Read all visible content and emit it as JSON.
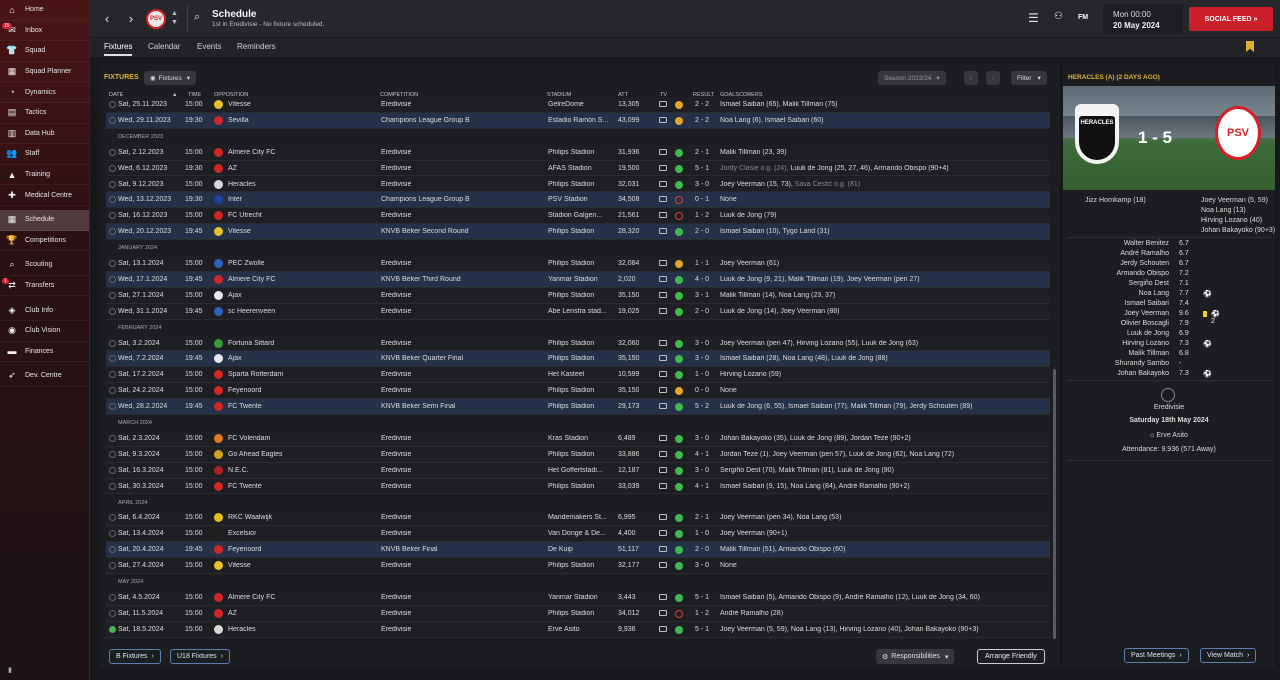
{
  "sidebar": {
    "items": [
      {
        "label": "Home",
        "icon": "home-icon",
        "glyph": "⌂"
      },
      {
        "label": "Inbox",
        "icon": "inbox-icon",
        "glyph": "✉",
        "badge": "15"
      },
      {
        "label": "Squad",
        "icon": "squad-icon",
        "glyph": "👕"
      },
      {
        "label": "Squad Planner",
        "icon": "squad-planner-icon",
        "glyph": "▦"
      },
      {
        "label": "Dynamics",
        "icon": "dynamics-icon",
        "glyph": "◔"
      },
      {
        "label": "Tactics",
        "icon": "tactics-icon",
        "glyph": "▤"
      },
      {
        "label": "Data Hub",
        "icon": "data-hub-icon",
        "glyph": "▥"
      },
      {
        "label": "Staff",
        "icon": "staff-icon",
        "glyph": "👥"
      },
      {
        "label": "Training",
        "icon": "training-icon",
        "glyph": "▲"
      },
      {
        "label": "Medical Centre",
        "icon": "medical-icon",
        "glyph": "✚"
      },
      {
        "label": "Schedule",
        "icon": "schedule-icon",
        "glyph": "▦",
        "active": true,
        "gap": true
      },
      {
        "label": "Competitions",
        "icon": "competitions-icon",
        "glyph": "🏆"
      },
      {
        "label": "Scouting",
        "icon": "scouting-icon",
        "glyph": "⌕",
        "gap": true
      },
      {
        "label": "Transfers",
        "icon": "transfers-icon",
        "glyph": "⇄",
        "badge": "1"
      },
      {
        "label": "Club Info",
        "icon": "club-info-icon",
        "glyph": "◈",
        "gap": true
      },
      {
        "label": "Club Vision",
        "icon": "club-vision-icon",
        "glyph": "◉"
      },
      {
        "label": "Finances",
        "icon": "finances-icon",
        "glyph": "▬"
      },
      {
        "label": "Dev. Centre",
        "icon": "dev-centre-icon",
        "glyph": "➶",
        "gap": true
      }
    ]
  },
  "header": {
    "title": "Schedule",
    "subtitle": "1st in Eredivisie - No fixture scheduled.",
    "club_abbr": "PSV",
    "fm": "FM",
    "time": "Mon 00:00",
    "date": "20 May 2024",
    "social": "SOCIAL FEED  »"
  },
  "tabs": [
    {
      "label": "Fixtures",
      "active": true
    },
    {
      "label": "Calendar"
    },
    {
      "label": "Events"
    },
    {
      "label": "Reminders"
    }
  ],
  "fixtures_panel": {
    "title": "FIXTURES",
    "view_label": "Fixtures",
    "season": "Season 2023/24",
    "filter": "Filter",
    "columns": {
      "date": "DATE",
      "time": "TIME",
      "opposition": "OPPOSITION",
      "competition": "COMPETITION",
      "stadium": "STADIUM",
      "att": "ATT",
      "tv": "TV",
      "result": "RESULT",
      "scorers": "GOALSCORERS"
    },
    "footer": {
      "b_fixtures": "B Fixtures",
      "u18_fixtures": "U18 Fixtures",
      "responsibilities": "Responsibilities",
      "arrange": "Arrange Friendly"
    }
  },
  "rows": [
    {
      "type": "fixture",
      "date": "Sat, 25.11.2023",
      "time": "15:00",
      "opp": "Vitesse",
      "crest": "#e4c02a",
      "comp": "Eredivisie",
      "stadium": "GelreDome",
      "att": "13,305",
      "outcome": "d",
      "result": "2 - 2",
      "scorers": "Ismael Saibari (65), Malik Tillman (75)"
    },
    {
      "type": "fixture",
      "hl": true,
      "date": "Wed, 29.11.2023",
      "time": "19:30",
      "opp": "Sevilla",
      "crest": "#d02626",
      "comp": "Champions League Group B",
      "stadium": "Estadio Ramón S...",
      "att": "43,099",
      "outcome": "d",
      "result": "2 - 2",
      "scorers": "Noa Lang (6), Ismael Saibari (60)"
    },
    {
      "type": "month",
      "label": "DECEMBER 2023"
    },
    {
      "type": "fixture",
      "date": "Sat, 2.12.2023",
      "time": "15:00",
      "opp": "Almere City FC",
      "crest": "#d02626",
      "comp": "Eredivisie",
      "stadium": "Philips Stadion",
      "att": "31,936",
      "outcome": "w",
      "result": "2 - 1",
      "scorers": "Malik Tillman (23, 39)"
    },
    {
      "type": "fixture",
      "date": "Wed, 6.12.2023",
      "time": "19:30",
      "opp": "AZ",
      "crest": "#d02626",
      "comp": "Eredivisie",
      "stadium": "AFAS Stadion",
      "att": "19,500",
      "outcome": "w",
      "result": "5 - 1",
      "scorers_og": "Jordy Clasie o.g. (24),",
      "scorers": "Luuk de Jong (25, 27, 46), Armando Obispo (90+4)"
    },
    {
      "type": "fixture",
      "date": "Sat, 9.12.2023",
      "time": "15:00",
      "opp": "Heracles",
      "crest": "#d8d8d8",
      "comp": "Eredivisie",
      "stadium": "Philips Stadion",
      "att": "32,031",
      "outcome": "w",
      "result": "3 - 0",
      "scorers": "Joey Veerman (15, 73),",
      "scorers_og2": "Sava Čestić o.g. (81)"
    },
    {
      "type": "fixture",
      "hl": true,
      "date": "Wed, 13.12.2023",
      "time": "19:30",
      "opp": "Inter",
      "crest": "#2040a0",
      "comp": "Champions League Group B",
      "stadium": "PSV Stadion",
      "att": "34,508",
      "outcome": "l",
      "result": "0 - 1",
      "scorers": "None"
    },
    {
      "type": "fixture",
      "date": "Sat, 16.12.2023",
      "time": "15:00",
      "opp": "FC Utrecht",
      "crest": "#d02626",
      "comp": "Eredivisie",
      "stadium": "Stadion Galgen...",
      "att": "21,561",
      "outcome": "l",
      "result": "1 - 2",
      "scorers": "Luuk de Jong (79)"
    },
    {
      "type": "fixture",
      "hl": true,
      "date": "Wed, 20.12.2023",
      "time": "19:45",
      "opp": "Vitesse",
      "crest": "#e4c02a",
      "comp": "KNVB Beker Second Round",
      "stadium": "Philips Stadion",
      "att": "28,320",
      "outcome": "w",
      "result": "2 - 0",
      "scorers": "Ismael Saibari (10), Tygo Land (31)"
    },
    {
      "type": "month",
      "label": "JANUARY 2024"
    },
    {
      "type": "fixture",
      "date": "Sat, 13.1.2024",
      "time": "15:00",
      "opp": "PEC Zwolle",
      "crest": "#2a62c0",
      "comp": "Eredivisie",
      "stadium": "Philips Stadion",
      "att": "32,084",
      "outcome": "d",
      "result": "1 - 1",
      "scorers": "Joey Veerman (61)"
    },
    {
      "type": "fixture",
      "hl": true,
      "date": "Wed, 17.1.2024",
      "time": "19:45",
      "opp": "Almere City FC",
      "crest": "#d02626",
      "comp": "KNVB Beker Third Round",
      "stadium": "Yanmar Stadion",
      "att": "2,020",
      "outcome": "w",
      "result": "4 - 0",
      "scorers": "Luuk de Jong (9, 21), Malik Tillman (19), Joey Veerman (pen 27)"
    },
    {
      "type": "fixture",
      "date": "Sat, 27.1.2024",
      "time": "15:00",
      "opp": "Ajax",
      "crest": "#e8e8e8",
      "comp": "Eredivisie",
      "stadium": "Philips Stadion",
      "att": "35,150",
      "outcome": "w",
      "result": "3 - 1",
      "scorers": "Malik Tillman (14), Noa Lang (23, 37)"
    },
    {
      "type": "fixture",
      "date": "Wed, 31.1.2024",
      "time": "19:45",
      "opp": "sc Heerenveen",
      "crest": "#2a62c0",
      "comp": "Eredivisie",
      "stadium": "Abe Lenstra stad...",
      "att": "19,025",
      "outcome": "w",
      "result": "2 - 0",
      "scorers": "Luuk de Jong (14), Joey Veerman (88)"
    },
    {
      "type": "month",
      "label": "FEBRUARY 2024"
    },
    {
      "type": "fixture",
      "date": "Sat, 3.2.2024",
      "time": "15:00",
      "opp": "Fortuna Sittard",
      "crest": "#3a9a3a",
      "comp": "Eredivisie",
      "stadium": "Philips Stadion",
      "att": "32,060",
      "outcome": "w",
      "result": "3 - 0",
      "scorers": "Joey Veerman (pen 47), Hirving Lozano (55), Luuk de Jong (63)"
    },
    {
      "type": "fixture",
      "hl": true,
      "date": "Wed, 7.2.2024",
      "time": "19:45",
      "opp": "Ajax",
      "crest": "#e8e8e8",
      "comp": "KNVB Beker Quarter Final",
      "stadium": "Philips Stadion",
      "att": "35,150",
      "outcome": "w",
      "result": "3 - 0",
      "scorers": "Ismael Saibari (28), Noa Lang (48), Luuk de Jong (88)"
    },
    {
      "type": "fixture",
      "date": "Sat, 17.2.2024",
      "time": "15:00",
      "opp": "Sparta Rotterdam",
      "crest": "#d02626",
      "comp": "Eredivisie",
      "stadium": "Het Kasteel",
      "att": "10,599",
      "outcome": "w",
      "result": "1 - 0",
      "scorers": "Hirving Lozano (59)"
    },
    {
      "type": "fixture",
      "date": "Sat, 24.2.2024",
      "time": "15:00",
      "opp": "Feyenoord",
      "crest": "#d02626",
      "comp": "Eredivisie",
      "stadium": "Philips Stadion",
      "att": "35,150",
      "outcome": "d",
      "result": "0 - 0",
      "scorers": "None"
    },
    {
      "type": "fixture",
      "hl": true,
      "date": "Wed, 28.2.2024",
      "time": "19:45",
      "opp": "FC Twente",
      "crest": "#d02626",
      "comp": "KNVB Beker Semi Final",
      "stadium": "Philips Stadion",
      "att": "29,173",
      "outcome": "w",
      "result": "5 - 2",
      "scorers": "Luuk de Jong (6, 55), Ismael Saibari (77), Malik Tillman (79), Jerdy Schouten (89)"
    },
    {
      "type": "month",
      "label": "MARCH 2024"
    },
    {
      "type": "fixture",
      "date": "Sat, 2.3.2024",
      "time": "15:00",
      "opp": "FC Volendam",
      "crest": "#e07a20",
      "comp": "Eredivisie",
      "stadium": "Kras Stadion",
      "att": "6,489",
      "outcome": "w",
      "result": "3 - 0",
      "scorers": "Johan Bakayoko (35), Luuk de Jong (89), Jordan Teze (90+2)"
    },
    {
      "type": "fixture",
      "date": "Sat, 9.3.2024",
      "time": "15:00",
      "opp": "Go Ahead Eagles",
      "crest": "#d0a020",
      "comp": "Eredivisie",
      "stadium": "Philips Stadion",
      "att": "33,886",
      "outcome": "w",
      "result": "4 - 1",
      "scorers": "Jordan Teze (1), Joey Veerman (pen 57), Luuk de Jong (62), Noa Lang (72)"
    },
    {
      "type": "fixture",
      "date": "Sat, 16.3.2024",
      "time": "15:00",
      "opp": "N.E.C.",
      "crest": "#b02020",
      "comp": "Eredivisie",
      "stadium": "Het Goffertstadi...",
      "att": "12,187",
      "outcome": "w",
      "result": "3 - 0",
      "scorers": "Sergiño Dest (70), Malik Tillman (81), Luuk de Jong (90)"
    },
    {
      "type": "fixture",
      "date": "Sat, 30.3.2024",
      "time": "15:00",
      "opp": "FC Twente",
      "crest": "#d02626",
      "comp": "Eredivisie",
      "stadium": "Philips Stadion",
      "att": "33,039",
      "outcome": "w",
      "result": "4 - 1",
      "scorers": "Ismael Saibari (9, 15), Noa Lang (84), André Ramalho (90+2)"
    },
    {
      "type": "month",
      "label": "APRIL 2024"
    },
    {
      "type": "fixture",
      "date": "Sat, 6.4.2024",
      "time": "15:00",
      "opp": "RKC Waalwijk",
      "crest": "#e0c020",
      "comp": "Eredivisie",
      "stadium": "Mandemakers St...",
      "att": "6,995",
      "outcome": "w",
      "result": "2 - 1",
      "scorers": "Joey Veerman (pen 34), Noa Lang (53)"
    },
    {
      "type": "fixture",
      "date": "Sat, 13.4.2024",
      "time": "15:00",
      "opp": "Excelsior",
      "crest": "#202020",
      "comp": "Eredivisie",
      "stadium": "Van Donge & De...",
      "att": "4,400",
      "outcome": "w",
      "result": "1 - 0",
      "scorers": "Joey Veerman (90+1)"
    },
    {
      "type": "fixture",
      "hl": true,
      "date": "Sat, 20.4.2024",
      "time": "19:45",
      "opp": "Feyenoord",
      "crest": "#d02626",
      "comp": "KNVB Beker Final",
      "stadium": "De Kuip",
      "att": "51,117",
      "outcome": "w",
      "result": "2 - 0",
      "scorers": "Malik Tillman (51), Armando Obispo (60)"
    },
    {
      "type": "fixture",
      "date": "Sat, 27.4.2024",
      "time": "15:00",
      "opp": "Vitesse",
      "crest": "#e4c02a",
      "comp": "Eredivisie",
      "stadium": "Philips Stadion",
      "att": "32,177",
      "outcome": "w",
      "result": "3 - 0",
      "scorers": "None"
    },
    {
      "type": "month",
      "label": "MAY 2024"
    },
    {
      "type": "fixture",
      "date": "Sat, 4.5.2024",
      "time": "15:00",
      "opp": "Almere City FC",
      "crest": "#d02626",
      "comp": "Eredivisie",
      "stadium": "Yanmar Stadion",
      "att": "3,443",
      "outcome": "w",
      "result": "5 - 1",
      "scorers": "Ismael Saibari (5), Armando Obispo (9), André Ramalho (12), Luuk de Jong (34, 60)"
    },
    {
      "type": "fixture",
      "date": "Sat, 11.5.2024",
      "time": "15:00",
      "opp": "AZ",
      "crest": "#d02626",
      "comp": "Eredivisie",
      "stadium": "Philips Stadion",
      "att": "34,012",
      "outcome": "l",
      "result": "1 - 2",
      "scorers": "André Ramalho (28)"
    },
    {
      "type": "fixture",
      "done": true,
      "date": "Sat, 18.5.2024",
      "time": "15:00",
      "opp": "Heracles",
      "crest": "#d8d8d8",
      "comp": "Eredivisie",
      "stadium": "Erve Asito",
      "att": "9,936",
      "outcome": "w",
      "result": "5 - 1",
      "scorers": "Joey Veerman (5, 59), Noa Lang (13), Hirving Lozano (40), Johan Bakayoko (90+3)"
    }
  ],
  "match": {
    "title": "HERACLES (A) (2 DAYS AGO)",
    "home": "HERACLES",
    "away": "PSV",
    "score": "1 - 5",
    "home_scorers": [
      "Jizz Hornkamp (18)"
    ],
    "away_scorers": [
      "Joey Veerman (5, 59)",
      "Noa Lang (13)",
      "Hirving Lozano (40)",
      "Johan Bakayoko (90+3)"
    ],
    "players": [
      {
        "name": "Walter Benitez",
        "rating": "6.7"
      },
      {
        "name": "André Ramalho",
        "rating": "6.7"
      },
      {
        "name": "Jerdy Schouten",
        "rating": "6.7"
      },
      {
        "name": "Armando Obispo",
        "rating": "7.2"
      },
      {
        "name": "Sergiño Dest",
        "rating": "7.1"
      },
      {
        "name": "Noa Lang",
        "rating": "7.7",
        "event": "⚽"
      },
      {
        "name": "Ismael Saibari",
        "rating": "7.4"
      },
      {
        "name": "Joey Veerman",
        "rating": "9.6",
        "event": "⚽ 2",
        "card": true
      },
      {
        "name": "Olivier Boscagli",
        "rating": "7.9"
      },
      {
        "name": "Luuk de Jong",
        "rating": "6.9"
      },
      {
        "name": "Hirving Lozano",
        "rating": "7.3",
        "event": "⚽"
      },
      {
        "name": "Malik Tillman",
        "rating": "6.8"
      },
      {
        "name": "Shurandy Sambo",
        "rating": "-"
      },
      {
        "name": "Johan Bakayoko",
        "rating": "7.3",
        "event": "⚽"
      }
    ],
    "competition": "Eredivisie",
    "date": "Saturday 18th May 2024",
    "stadium": "Erve Asito",
    "attendance": "Attendance: 9,936 (571 Away)",
    "past_meetings": "Past Meetings",
    "view_match": "View Match"
  }
}
